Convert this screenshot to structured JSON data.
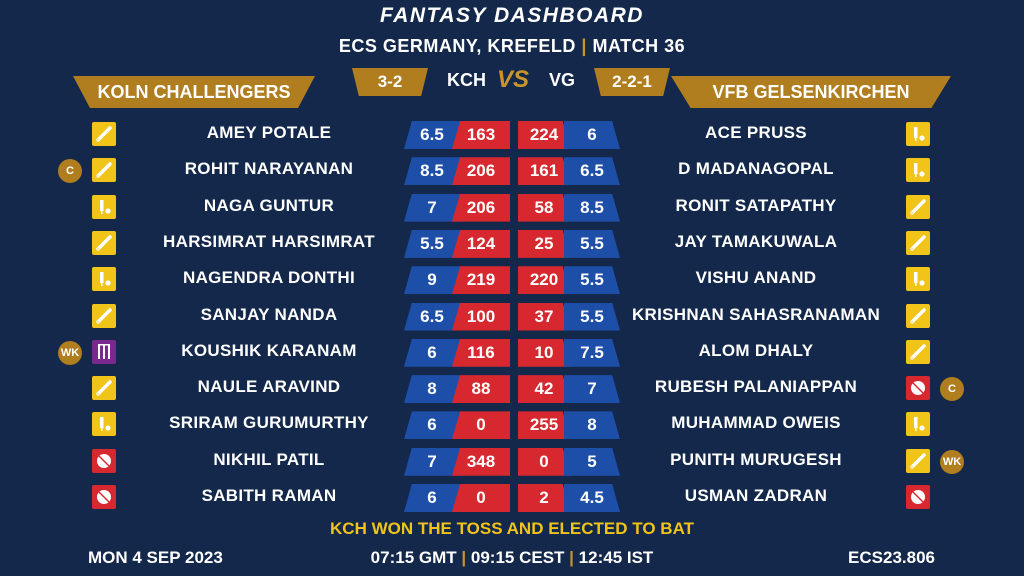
{
  "header": {
    "title": "FANTASY DASHBOARD",
    "subtitle_left": "ECS GERMANY, KREFELD",
    "subtitle_sep": "|",
    "subtitle_right": "MATCH 36"
  },
  "teams": {
    "left": {
      "name": "KOLN CHALLENGERS",
      "abbr": "KCH",
      "record": "3-2"
    },
    "right": {
      "name": "VFB GELSENKIRCHEN",
      "abbr": "VG",
      "record": "2-2-1"
    },
    "vs": "VS"
  },
  "rows": [
    {
      "l_name": "AMEY POTALE",
      "l_role": "bat",
      "l_badge": "",
      "l_credit": "6.5",
      "l_points": "163",
      "r_points": "224",
      "r_credit": "6",
      "r_name": "ACE PRUSS",
      "r_role": "ar",
      "r_badge": ""
    },
    {
      "l_name": "ROHIT NARAYANAN",
      "l_role": "bat",
      "l_badge": "C",
      "l_credit": "8.5",
      "l_points": "206",
      "r_points": "161",
      "r_credit": "6.5",
      "r_name": "D MADANAGOPAL",
      "r_role": "ar",
      "r_badge": ""
    },
    {
      "l_name": "NAGA GUNTUR",
      "l_role": "ar",
      "l_badge": "",
      "l_credit": "7",
      "l_points": "206",
      "r_points": "58",
      "r_credit": "8.5",
      "r_name": "RONIT SATAPATHY",
      "r_role": "bat",
      "r_badge": ""
    },
    {
      "l_name": "HARSIMRAT HARSIMRAT",
      "l_role": "bat",
      "l_badge": "",
      "l_credit": "5.5",
      "l_points": "124",
      "r_points": "25",
      "r_credit": "5.5",
      "r_name": "JAY TAMAKUWALA",
      "r_role": "bat",
      "r_badge": ""
    },
    {
      "l_name": "NAGENDRA DONTHI",
      "l_role": "ar",
      "l_badge": "",
      "l_credit": "9",
      "l_points": "219",
      "r_points": "220",
      "r_credit": "5.5",
      "r_name": "VISHU ANAND",
      "r_role": "ar",
      "r_badge": ""
    },
    {
      "l_name": "SANJAY NANDA",
      "l_role": "bat",
      "l_badge": "",
      "l_credit": "6.5",
      "l_points": "100",
      "r_points": "37",
      "r_credit": "5.5",
      "r_name": "KRISHNAN SAHASRANAMAN",
      "r_role": "bat",
      "r_badge": ""
    },
    {
      "l_name": "KOUSHIK KARANAM",
      "l_role": "wk",
      "l_badge": "WK",
      "l_credit": "6",
      "l_points": "116",
      "r_points": "10",
      "r_credit": "7.5",
      "r_name": "ALOM DHALY",
      "r_role": "bat",
      "r_badge": ""
    },
    {
      "l_name": "NAULE ARAVIND",
      "l_role": "bat",
      "l_badge": "",
      "l_credit": "8",
      "l_points": "88",
      "r_points": "42",
      "r_credit": "7",
      "r_name": "RUBESH PALANIAPPAN",
      "r_role": "bowl",
      "r_badge": "C"
    },
    {
      "l_name": "SRIRAM GURUMURTHY",
      "l_role": "ar",
      "l_badge": "",
      "l_credit": "6",
      "l_points": "0",
      "r_points": "255",
      "r_credit": "8",
      "r_name": "MUHAMMAD OWEIS",
      "r_role": "ar",
      "r_badge": ""
    },
    {
      "l_name": "NIKHIL PATIL",
      "l_role": "bowl",
      "l_badge": "",
      "l_credit": "7",
      "l_points": "348",
      "r_points": "0",
      "r_credit": "5",
      "r_name": "PUNITH MURUGESH",
      "r_role": "bat",
      "r_badge": "WK"
    },
    {
      "l_name": "SABITH RAMAN",
      "l_role": "bowl",
      "l_badge": "",
      "l_credit": "6",
      "l_points": "0",
      "r_points": "2",
      "r_credit": "4.5",
      "r_name": "USMAN ZADRAN",
      "r_role": "bowl",
      "r_badge": ""
    }
  ],
  "footer": {
    "toss": "KCH WON THE TOSS AND ELECTED TO BAT",
    "date": "MON 4 SEP 2023",
    "time_gmt": "07:15 GMT",
    "time_cest": "09:15 CEST",
    "time_ist": "12:45 IST",
    "sep": "|",
    "code": "ECS23.806"
  },
  "colors": {
    "background": "#13284a",
    "gold": "#b07d1f",
    "credit_blue": "#1d4fa9",
    "points_red": "#d7282f",
    "toss_yellow": "#f0c419"
  },
  "icons": {
    "bat": "cricket-bat-icon",
    "ar": "bat-and-ball-icon",
    "bowl": "cricket-ball-icon",
    "wk": "wicket-stumps-icon"
  }
}
